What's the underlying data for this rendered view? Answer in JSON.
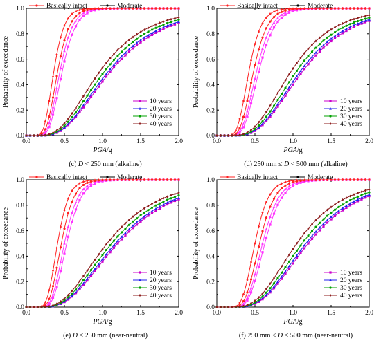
{
  "chart_data": [
    {
      "type": "line",
      "caption_prefix": "(c)",
      "caption_parts": [
        {
          "text": "(c) ",
          "italic": false
        },
        {
          "text": "D",
          "italic": true
        },
        {
          "text": " < 250 mm (alkaline)",
          "italic": false
        }
      ],
      "xlabel": "PGA/g",
      "ylabel": "Probability of exceedance",
      "xlim": [
        0,
        2.0
      ],
      "ylim": [
        0,
        1.0
      ],
      "xticks": [
        "0.0",
        "0.5",
        "1.0",
        "1.5",
        "2.0"
      ],
      "yticks": [
        "0.0",
        "0.2",
        "0.4",
        "0.6",
        "0.8",
        "1.0"
      ],
      "top_legend": [
        "Basically intact",
        "Moderate"
      ],
      "legend": [
        "10 years",
        "20 years",
        "30 years",
        "40 years"
      ],
      "series": [
        {
          "name": "Basically intact",
          "years": "10 years",
          "median": 0.47,
          "beta": 0.3,
          "color": "#ff33ff",
          "marker": "square"
        },
        {
          "name": "Basically intact",
          "years": "20 years",
          "median": 0.44,
          "beta": 0.3,
          "color": "#ff33ff",
          "marker": "triangle"
        },
        {
          "name": "Basically intact",
          "years": "30 years",
          "median": 0.41,
          "beta": 0.3,
          "color": "#ff2020",
          "marker": "dot"
        },
        {
          "name": "Basically intact",
          "years": "40 years",
          "median": 0.36,
          "beta": 0.3,
          "color": "#ff2020",
          "marker": "diamond"
        },
        {
          "name": "Moderate",
          "years": "10 years",
          "median": 1.1,
          "beta": 0.5,
          "color": "#cc00cc",
          "marker": "square"
        },
        {
          "name": "Moderate",
          "years": "20 years",
          "median": 1.07,
          "beta": 0.5,
          "color": "#2020ee",
          "marker": "triangle"
        },
        {
          "name": "Moderate",
          "years": "30 years",
          "median": 1.02,
          "beta": 0.5,
          "color": "#00a000",
          "marker": "dot"
        },
        {
          "name": "Moderate",
          "years": "40 years",
          "median": 0.96,
          "beta": 0.5,
          "color": "#8b1a1a",
          "marker": "diamond"
        }
      ]
    },
    {
      "type": "line",
      "caption_parts": [
        {
          "text": "(d) 250 mm ≤ ",
          "italic": false
        },
        {
          "text": "D",
          "italic": true
        },
        {
          "text": " < 500 mm (alkaline)",
          "italic": false
        }
      ],
      "xlabel": "PGA/g",
      "ylabel": "Probability of exceedance",
      "xlim": [
        0,
        2.0
      ],
      "ylim": [
        0,
        1.0
      ],
      "xticks": [
        "0.0",
        "0.5",
        "1.0",
        "1.5",
        "2.0"
      ],
      "yticks": [
        "0.0",
        "0.2",
        "0.4",
        "0.6",
        "0.8",
        "1.0"
      ],
      "top_legend": [
        "Basically intact",
        "Moderate"
      ],
      "legend": [
        "10 years",
        "20 years",
        "30 years",
        "40 years"
      ],
      "series": [
        {
          "name": "Basically intact",
          "years": "10 years",
          "median": 0.55,
          "beta": 0.3,
          "color": "#ff33ff",
          "marker": "square"
        },
        {
          "name": "Basically intact",
          "years": "20 years",
          "median": 0.52,
          "beta": 0.3,
          "color": "#ff33ff",
          "marker": "triangle"
        },
        {
          "name": "Basically intact",
          "years": "30 years",
          "median": 0.48,
          "beta": 0.3,
          "color": "#ff2020",
          "marker": "dot"
        },
        {
          "name": "Basically intact",
          "years": "40 years",
          "median": 0.42,
          "beta": 0.3,
          "color": "#ff2020",
          "marker": "diamond"
        },
        {
          "name": "Moderate",
          "years": "10 years",
          "median": 1.12,
          "beta": 0.45,
          "color": "#cc00cc",
          "marker": "square"
        },
        {
          "name": "Moderate",
          "years": "20 years",
          "median": 1.09,
          "beta": 0.45,
          "color": "#2020ee",
          "marker": "triangle"
        },
        {
          "name": "Moderate",
          "years": "30 years",
          "median": 1.04,
          "beta": 0.45,
          "color": "#00a000",
          "marker": "dot"
        },
        {
          "name": "Moderate",
          "years": "40 years",
          "median": 0.97,
          "beta": 0.45,
          "color": "#8b1a1a",
          "marker": "diamond"
        }
      ]
    },
    {
      "type": "line",
      "caption_parts": [
        {
          "text": "(e) ",
          "italic": false
        },
        {
          "text": "D",
          "italic": true
        },
        {
          "text": " < 250 mm (near-neutral)",
          "italic": false
        }
      ],
      "xlabel": "PGA/g",
      "ylabel": "Probability of exceedance",
      "xlim": [
        0,
        2.0
      ],
      "ylim": [
        0,
        1.0
      ],
      "xticks": [
        "0.0",
        "0.5",
        "1.0",
        "1.5",
        "2.0"
      ],
      "yticks": [
        "0.0",
        "0.2",
        "0.4",
        "0.6",
        "0.8",
        "1.0"
      ],
      "top_legend": [
        "Basically intact",
        "Moderate"
      ],
      "legend": [
        "10 years",
        "20 years",
        "30 years",
        "40 years"
      ],
      "series": [
        {
          "name": "Basically intact",
          "years": "10 years",
          "median": 0.53,
          "beta": 0.28,
          "color": "#ff33ff",
          "marker": "square"
        },
        {
          "name": "Basically intact",
          "years": "20 years",
          "median": 0.5,
          "beta": 0.28,
          "color": "#ff33ff",
          "marker": "triangle"
        },
        {
          "name": "Basically intact",
          "years": "30 years",
          "median": 0.46,
          "beta": 0.28,
          "color": "#ff2020",
          "marker": "dot"
        },
        {
          "name": "Basically intact",
          "years": "40 years",
          "median": 0.41,
          "beta": 0.28,
          "color": "#ff2020",
          "marker": "diamond"
        },
        {
          "name": "Moderate",
          "years": "10 years",
          "median": 1.2,
          "beta": 0.5,
          "color": "#cc00cc",
          "marker": "square"
        },
        {
          "name": "Moderate",
          "years": "20 years",
          "median": 1.17,
          "beta": 0.5,
          "color": "#2020ee",
          "marker": "triangle"
        },
        {
          "name": "Moderate",
          "years": "30 years",
          "median": 1.12,
          "beta": 0.5,
          "color": "#00a000",
          "marker": "dot"
        },
        {
          "name": "Moderate",
          "years": "40 years",
          "median": 1.06,
          "beta": 0.5,
          "color": "#8b1a1a",
          "marker": "diamond"
        }
      ]
    },
    {
      "type": "line",
      "caption_parts": [
        {
          "text": "(f) 250 mm ≤ ",
          "italic": false
        },
        {
          "text": "D",
          "italic": true
        },
        {
          "text": " < 500 mm (near-neutral)",
          "italic": false
        }
      ],
      "xlabel": "PGA/g",
      "ylabel": "Probability of exceedance",
      "xlim": [
        0,
        2.0
      ],
      "ylim": [
        0,
        1.0
      ],
      "xticks": [
        "0.0",
        "0.5",
        "1.0",
        "1.5",
        "2.0"
      ],
      "yticks": [
        "0.0",
        "0.2",
        "0.4",
        "0.6",
        "0.8",
        "1.0"
      ],
      "top_legend": [
        "Basically intact",
        "Moderate"
      ],
      "legend": [
        "10 years",
        "20 years",
        "30 years",
        "40 years"
      ],
      "series": [
        {
          "name": "Basically intact",
          "years": "10 years",
          "median": 0.63,
          "beta": 0.28,
          "color": "#ff33ff",
          "marker": "square"
        },
        {
          "name": "Basically intact",
          "years": "20 years",
          "median": 0.6,
          "beta": 0.28,
          "color": "#ff33ff",
          "marker": "triangle"
        },
        {
          "name": "Basically intact",
          "years": "30 years",
          "median": 0.56,
          "beta": 0.28,
          "color": "#ff2020",
          "marker": "dot"
        },
        {
          "name": "Basically intact",
          "years": "40 years",
          "median": 0.5,
          "beta": 0.28,
          "color": "#ff2020",
          "marker": "diamond"
        },
        {
          "name": "Moderate",
          "years": "10 years",
          "median": 1.2,
          "beta": 0.45,
          "color": "#cc00cc",
          "marker": "square"
        },
        {
          "name": "Moderate",
          "years": "20 years",
          "median": 1.17,
          "beta": 0.45,
          "color": "#2020ee",
          "marker": "triangle"
        },
        {
          "name": "Moderate",
          "years": "30 years",
          "median": 1.12,
          "beta": 0.45,
          "color": "#00a000",
          "marker": "dot"
        },
        {
          "name": "Moderate",
          "years": "40 years",
          "median": 1.05,
          "beta": 0.45,
          "color": "#8b1a1a",
          "marker": "diamond"
        }
      ]
    }
  ],
  "legend_colors": {
    "10 years": "#cc00cc",
    "20 years": "#2020ee",
    "30 years": "#00a000",
    "40 years": "#8b1a1a",
    "Basically intact": "#ff2020",
    "Moderate": "#000000"
  }
}
